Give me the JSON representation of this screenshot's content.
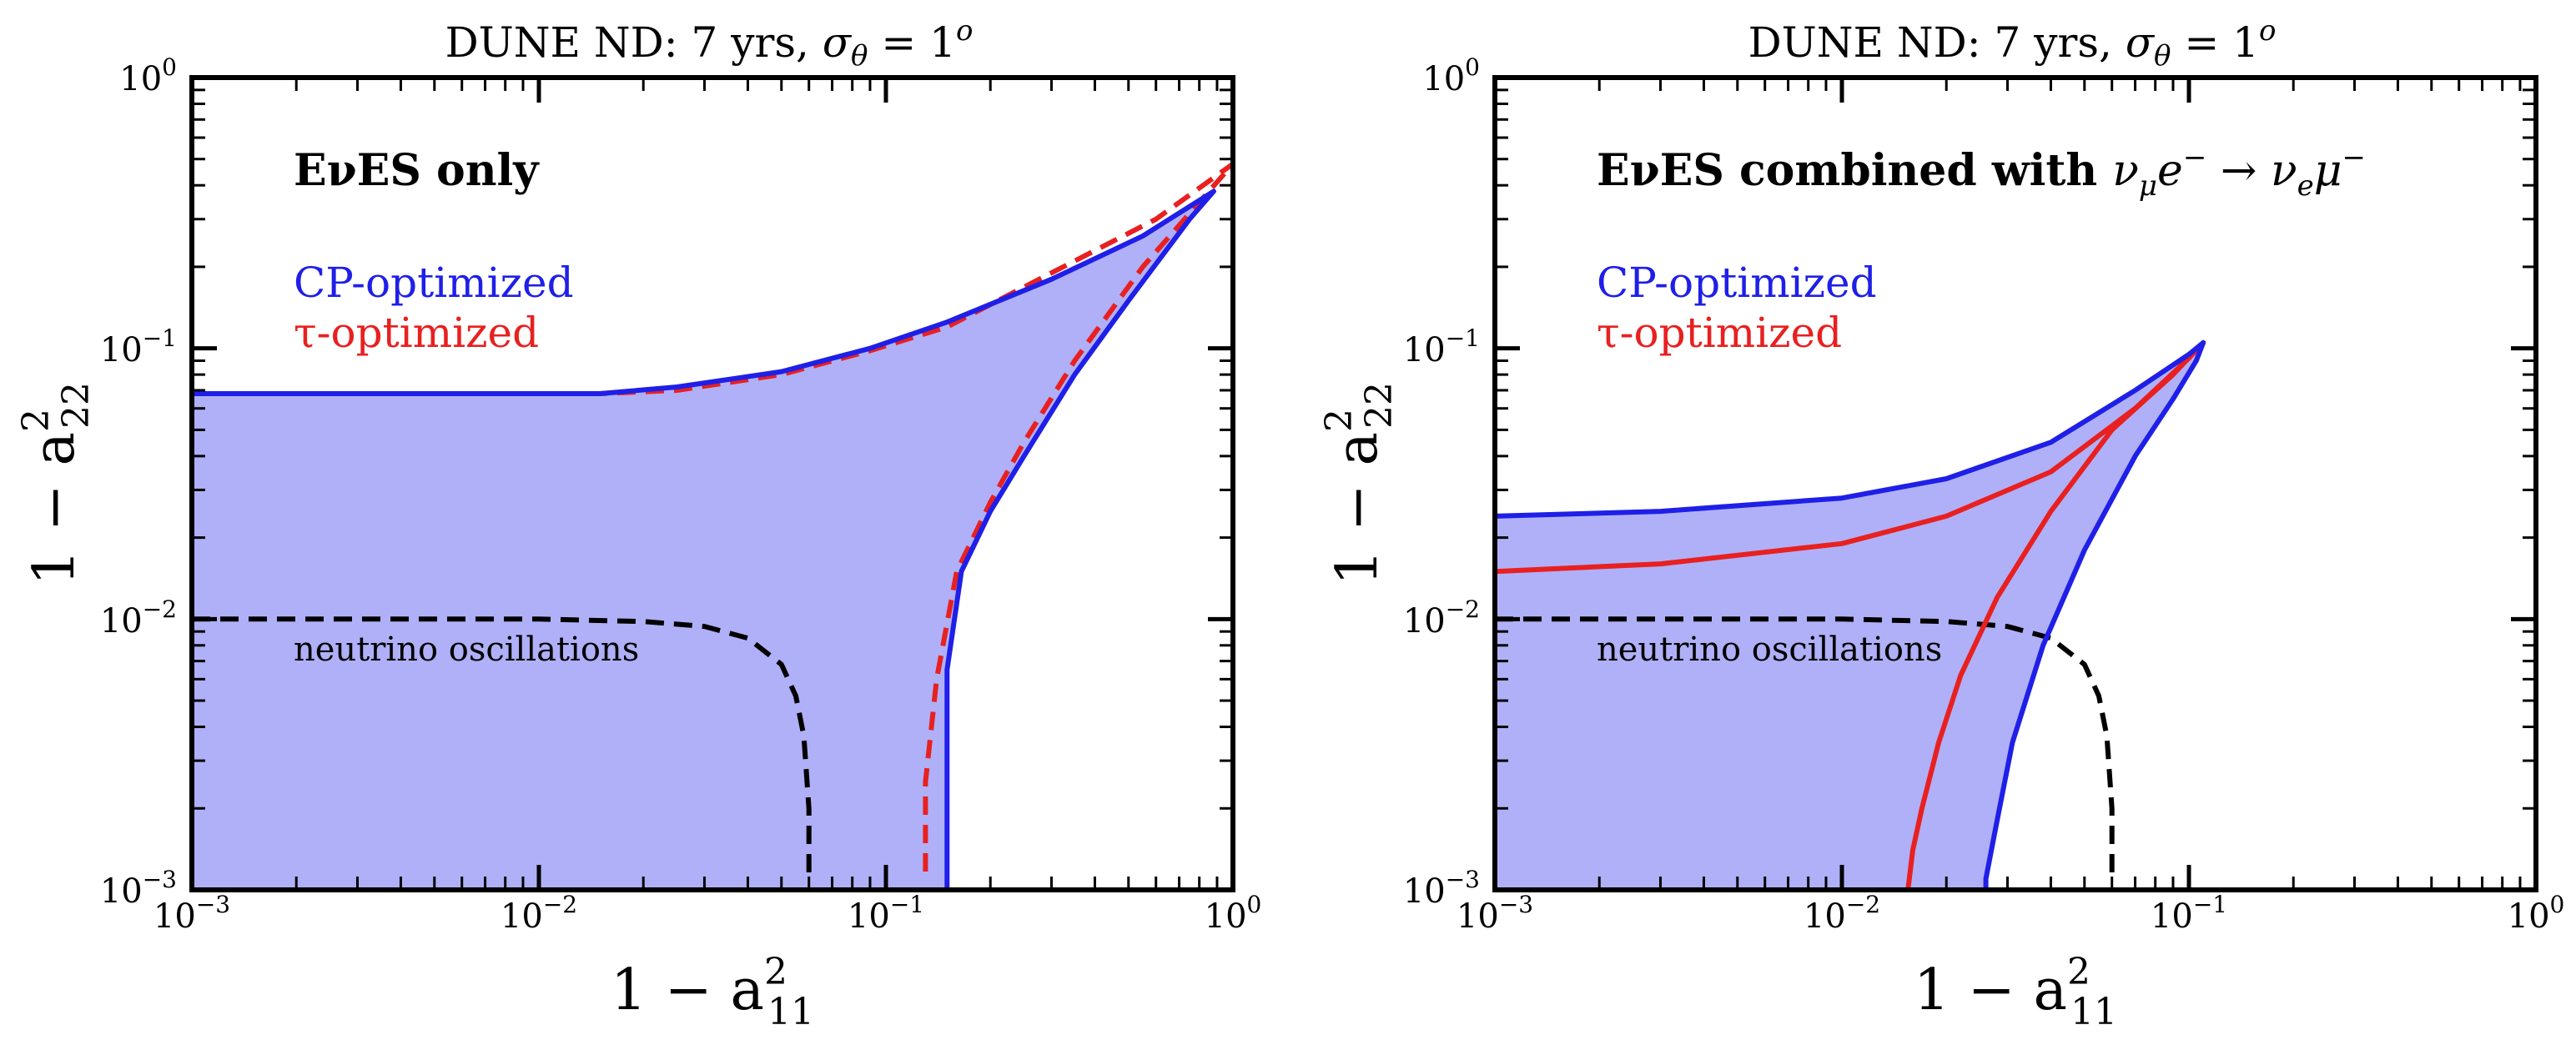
{
  "figure": {
    "description_free": true
  },
  "colors": {
    "fill": "#b0b0f8",
    "blue": "#1f1fe8",
    "red": "#e82020",
    "black": "#000000"
  },
  "chart_data": [
    {
      "type": "area",
      "title": "DUNE ND: 7 yrs, σθ = 1°",
      "title_parts": {
        "pre": "DUNE ND: 7 yrs, ",
        "sigma": "σ",
        "sub": "θ",
        "eq": " = 1",
        "sup": "o"
      },
      "xlabel": "1 − a²₁₁",
      "ylabel": "1 − a²₂₂",
      "xlabel_parts": {
        "pre": "1 − a",
        "sup": "2",
        "sub": "11"
      },
      "ylabel_parts": {
        "pre": "1 − a",
        "sup": "2",
        "sub": "22"
      },
      "xscale": "log",
      "yscale": "log",
      "xlim": [
        0.001,
        1
      ],
      "ylim": [
        0.001,
        1
      ],
      "tick_labels": [
        {
          "base": "10",
          "exp": "−3"
        },
        {
          "base": "10",
          "exp": "−2"
        },
        {
          "base": "10",
          "exp": "−1"
        },
        {
          "base": "10",
          "exp": "0"
        }
      ],
      "annotation": "EνES only",
      "legend": [
        "CP-optimized",
        "τ-optimized"
      ],
      "osc_label": "neutrino oscillations",
      "series": [
        {
          "name": "CP-optimized",
          "color": "blue",
          "style": "solid",
          "filled": true,
          "x": [
            0.001,
            0.015,
            0.025,
            0.05,
            0.09,
            0.15,
            0.3,
            0.55,
            0.88,
            0.75,
            0.5,
            0.35,
            0.25,
            0.2,
            0.165,
            0.15,
            0.15,
            0.15,
            0.001
          ],
          "y": [
            0.068,
            0.068,
            0.072,
            0.082,
            0.1,
            0.125,
            0.18,
            0.26,
            0.38,
            0.3,
            0.15,
            0.08,
            0.04,
            0.025,
            0.015,
            0.0065,
            0.001,
            0.001,
            0.001
          ]
        },
        {
          "name": "τ-optimized",
          "color": "red",
          "style": "dashed",
          "filled": false,
          "x": [
            0.001,
            0.015,
            0.025,
            0.05,
            0.09,
            0.15,
            0.3,
            0.6,
            1.0,
            0.55,
            0.35,
            0.25,
            0.2,
            0.16,
            0.14,
            0.13,
            0.13
          ],
          "y": [
            0.068,
            0.068,
            0.07,
            0.08,
            0.098,
            0.12,
            0.19,
            0.3,
            0.48,
            0.2,
            0.09,
            0.045,
            0.027,
            0.015,
            0.006,
            0.0025,
            0.0011
          ]
        },
        {
          "name": "neutrino oscillations",
          "color": "black",
          "style": "dashed",
          "filled": false,
          "x": [
            0.001,
            0.01,
            0.02,
            0.03,
            0.04,
            0.05,
            0.055,
            0.058,
            0.06,
            0.06
          ],
          "y": [
            0.01,
            0.01,
            0.0098,
            0.0094,
            0.0085,
            0.0068,
            0.0052,
            0.0037,
            0.002,
            0.0011
          ]
        }
      ]
    },
    {
      "type": "area",
      "title": "DUNE ND: 7 yrs, σθ = 1°",
      "title_parts": {
        "pre": "DUNE ND: 7 yrs, ",
        "sigma": "σ",
        "sub": "θ",
        "eq": " = 1",
        "sup": "o"
      },
      "xlabel": "1 − a²₁₁",
      "ylabel": "1 − a²₂₂",
      "xlabel_parts": {
        "pre": "1 − a",
        "sup": "2",
        "sub": "11"
      },
      "ylabel_parts": {
        "pre": "1 − a",
        "sup": "2",
        "sub": "22"
      },
      "xscale": "log",
      "yscale": "log",
      "xlim": [
        0.001,
        1
      ],
      "ylim": [
        0.001,
        1
      ],
      "tick_labels": [
        {
          "base": "10",
          "exp": "−3"
        },
        {
          "base": "10",
          "exp": "−2"
        },
        {
          "base": "10",
          "exp": "−1"
        },
        {
          "base": "10",
          "exp": "0"
        }
      ],
      "annotation": "EνES combined with νμe⁻ → νeμ⁻",
      "annotation_parts": {
        "pre": "EνES combined with ",
        "nu1": "ν",
        "sub1": "μ",
        "e": "e",
        "sup1": "−",
        "arrow": " → ",
        "nu2": "ν",
        "sub2": "e",
        "mu": "μ",
        "sup2": "−"
      },
      "legend": [
        "CP-optimized",
        "τ-optimized"
      ],
      "osc_label": "neutrino oscillations",
      "series": [
        {
          "name": "CP-optimized",
          "color": "blue",
          "style": "solid",
          "filled": true,
          "x": [
            0.001,
            0.003,
            0.01,
            0.02,
            0.04,
            0.07,
            0.1,
            0.11,
            0.105,
            0.09,
            0.07,
            0.05,
            0.038,
            0.031,
            0.028,
            0.026,
            0.026,
            0.001
          ],
          "y": [
            0.024,
            0.025,
            0.028,
            0.033,
            0.045,
            0.07,
            0.095,
            0.105,
            0.09,
            0.065,
            0.04,
            0.018,
            0.008,
            0.0035,
            0.0018,
            0.0011,
            0.001,
            0.001
          ]
        },
        {
          "name": "τ-optimized",
          "color": "red",
          "style": "solid",
          "filled": false,
          "x": [
            0.001,
            0.003,
            0.01,
            0.02,
            0.04,
            0.07,
            0.1,
            0.11,
            0.09,
            0.06,
            0.04,
            0.028,
            0.022,
            0.019,
            0.017,
            0.016,
            0.0155
          ],
          "y": [
            0.015,
            0.016,
            0.019,
            0.024,
            0.035,
            0.06,
            0.092,
            0.105,
            0.08,
            0.05,
            0.025,
            0.012,
            0.0062,
            0.0035,
            0.002,
            0.0014,
            0.001
          ]
        },
        {
          "name": "neutrino oscillations",
          "color": "black",
          "style": "dashed",
          "filled": false,
          "x": [
            0.001,
            0.01,
            0.02,
            0.03,
            0.04,
            0.05,
            0.055,
            0.058,
            0.06,
            0.06
          ],
          "y": [
            0.01,
            0.01,
            0.0098,
            0.0094,
            0.0085,
            0.0068,
            0.0052,
            0.0037,
            0.002,
            0.0011
          ]
        }
      ]
    }
  ]
}
